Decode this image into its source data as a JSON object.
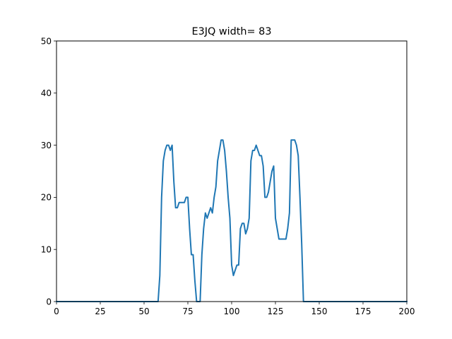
{
  "chart_data": {
    "type": "line",
    "title": "E3JQ width= 83",
    "xlabel": "",
    "ylabel": "",
    "xlim": [
      0,
      200
    ],
    "ylim": [
      0,
      50
    ],
    "xticks": [
      0,
      25,
      50,
      75,
      100,
      125,
      150,
      175,
      200
    ],
    "yticks": [
      0,
      10,
      20,
      30,
      40,
      50
    ],
    "grid": false,
    "legend": "none",
    "line_color": "#1f77b4",
    "series": [
      {
        "x": [
          0,
          58,
          59,
          60,
          61,
          62,
          63,
          64,
          65,
          66,
          67,
          68,
          69,
          70,
          71,
          72,
          73,
          74,
          75,
          76,
          77,
          78,
          79,
          80,
          81,
          82,
          83,
          84,
          85,
          86,
          87,
          88,
          89,
          90,
          91,
          92,
          93,
          94,
          95,
          96,
          97,
          98,
          99,
          100,
          101,
          102,
          103,
          104,
          105,
          106,
          107,
          108,
          109,
          110,
          111,
          112,
          113,
          114,
          115,
          116,
          117,
          118,
          119,
          120,
          121,
          122,
          123,
          124,
          125,
          126,
          127,
          128,
          129,
          130,
          131,
          132,
          133,
          134,
          135,
          136,
          137,
          138,
          139,
          140,
          141,
          200
        ],
        "y": [
          0,
          0,
          5,
          20,
          27,
          29,
          30,
          30,
          29,
          30,
          23,
          18,
          18,
          19,
          19,
          19,
          19,
          20,
          20,
          14,
          9,
          9,
          4,
          0,
          0,
          0,
          9,
          14,
          17,
          16,
          17,
          18,
          17,
          20,
          22,
          27,
          29,
          31,
          31,
          29,
          25,
          20,
          16,
          7,
          5,
          6,
          7,
          7,
          14,
          15,
          15,
          13,
          14,
          16,
          27,
          29,
          29,
          30,
          29,
          28,
          28,
          26,
          20,
          20,
          21,
          23,
          25,
          26,
          16,
          14,
          12,
          12,
          12,
          12,
          12,
          14,
          17,
          31,
          31,
          31,
          30,
          28,
          20,
          11,
          0,
          0
        ]
      }
    ]
  }
}
